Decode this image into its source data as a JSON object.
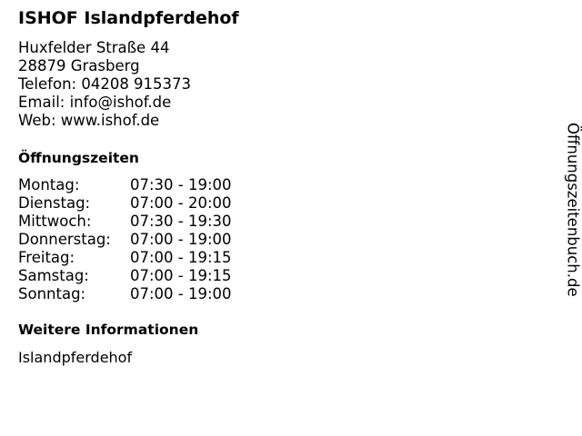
{
  "title": "ISHOF Islandpferdehof",
  "address": [
    "Huxfelder Straße 44",
    "28879 Grasberg",
    "Telefon: 04208 915373",
    "Email: info@ishof.de",
    "Web: www.ishof.de"
  ],
  "hours_heading": "Öffnungszeiten",
  "hours": [
    {
      "day": "Montag:",
      "time": "07:30 - 19:00"
    },
    {
      "day": "Dienstag:",
      "time": "07:00 - 20:00"
    },
    {
      "day": "Mittwoch:",
      "time": "07:30 - 19:30"
    },
    {
      "day": "Donnerstag:",
      "time": "07:00 - 19:00"
    },
    {
      "day": "Freitag:",
      "time": "07:00 - 19:15"
    },
    {
      "day": "Samstag:",
      "time": "07:00 - 19:15"
    },
    {
      "day": "Sonntag:",
      "time": "07:00 - 19:00"
    }
  ],
  "info_heading": "Weitere Informationen",
  "info_text": "Islandpferdehof",
  "side_brand": "Öffnungszeitenbuch.de"
}
